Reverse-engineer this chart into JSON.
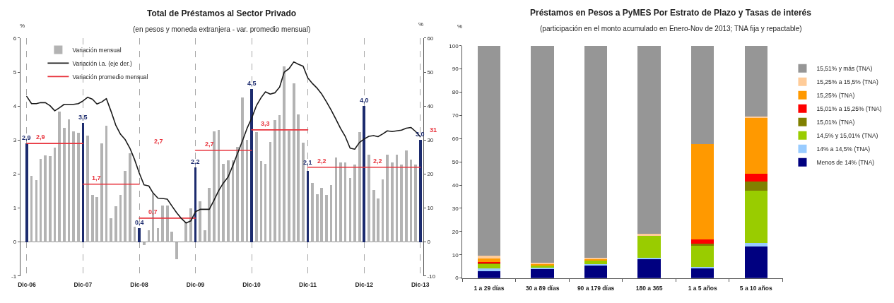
{
  "chart_data": [
    {
      "type": "bar",
      "title": "Total de Préstamos al Sector Privado",
      "subtitle": "(en pesos y moneda extranjera - var. promedio mensual)",
      "ylabel": "%",
      "y2label": "%",
      "x": [
        "2006-12",
        "2007-01",
        "2007-02",
        "2007-03",
        "2007-04",
        "2007-05",
        "2007-06",
        "2007-07",
        "2007-08",
        "2007-09",
        "2007-10",
        "2007-11",
        "2007-12",
        "2008-01",
        "2008-02",
        "2008-03",
        "2008-04",
        "2008-05",
        "2008-06",
        "2008-07",
        "2008-08",
        "2008-09",
        "2008-10",
        "2008-11",
        "2008-12",
        "2009-01",
        "2009-02",
        "2009-03",
        "2009-04",
        "2009-05",
        "2009-06",
        "2009-07",
        "2009-08",
        "2009-09",
        "2009-10",
        "2009-11",
        "2009-12",
        "2010-01",
        "2010-02",
        "2010-03",
        "2010-04",
        "2010-05",
        "2010-06",
        "2010-07",
        "2010-08",
        "2010-09",
        "2010-10",
        "2010-11",
        "2010-12",
        "2011-01",
        "2011-02",
        "2011-03",
        "2011-04",
        "2011-05",
        "2011-06",
        "2011-07",
        "2011-08",
        "2011-09",
        "2011-10",
        "2011-11",
        "2011-12",
        "2012-01",
        "2012-02",
        "2012-03",
        "2012-04",
        "2012-05",
        "2012-06",
        "2012-07",
        "2012-08",
        "2012-09",
        "2012-10",
        "2012-11",
        "2012-12",
        "2013-01",
        "2013-02",
        "2013-03",
        "2013-04",
        "2013-05",
        "2013-06",
        "2013-07",
        "2013-08",
        "2013-09",
        "2013-10",
        "2013-11",
        "2013-12"
      ],
      "xlim": [
        "2006-10-20",
        "2013-12-20"
      ],
      "xticks": [
        {
          "value": "2006-12",
          "label": "Dic-06"
        },
        {
          "value": "2007-12",
          "label": "Dic-07"
        },
        {
          "value": "2008-12",
          "label": "Dic-08"
        },
        {
          "value": "2009-12",
          "label": "Dic-09"
        },
        {
          "value": "2010-12",
          "label": "Dic-10"
        },
        {
          "value": "2011-12",
          "label": "Dic-11"
        },
        {
          "value": "2012-12",
          "label": "Dic-12"
        },
        {
          "value": "2013-12",
          "label": "Dic-13"
        }
      ],
      "ylim": [
        -1,
        6
      ],
      "yticks": [
        -1,
        0,
        1,
        2,
        3,
        4,
        5,
        6
      ],
      "y2lim": [
        -10,
        60
      ],
      "y2ticks": [
        -10,
        0,
        10,
        20,
        30,
        40,
        50,
        60
      ],
      "grid": "x",
      "legend": "top left",
      "series": [
        {
          "name": "Variación mensual",
          "type": "bar",
          "color": "#b3b3b3",
          "colors": [
            "#1c2b6e",
            "#b3b3b3",
            "#b3b3b3",
            "#b3b3b3",
            "#b3b3b3",
            "#b3b3b3",
            "#b3b3b3",
            "#b3b3b3",
            "#b3b3b3",
            "#b3b3b3",
            "#b3b3b3",
            "#b3b3b3",
            "#1c2b6e",
            "#b3b3b3",
            "#b3b3b3",
            "#b3b3b3",
            "#b3b3b3",
            "#b3b3b3",
            "#b3b3b3",
            "#b3b3b3",
            "#b3b3b3",
            "#b3b3b3",
            "#b3b3b3",
            "#b3b3b3",
            "#1c2b6e",
            "#b3b3b3",
            "#b3b3b3",
            "#b3b3b3",
            "#b3b3b3",
            "#b3b3b3",
            "#b3b3b3",
            "#b3b3b3",
            "#b3b3b3",
            "#b3b3b3",
            "#b3b3b3",
            "#b3b3b3",
            "#1c2b6e",
            "#b3b3b3",
            "#b3b3b3",
            "#b3b3b3",
            "#b3b3b3",
            "#b3b3b3",
            "#b3b3b3",
            "#b3b3b3",
            "#b3b3b3",
            "#b3b3b3",
            "#b3b3b3",
            "#b3b3b3",
            "#1c2b6e",
            "#b3b3b3",
            "#b3b3b3",
            "#b3b3b3",
            "#b3b3b3",
            "#b3b3b3",
            "#b3b3b3",
            "#b3b3b3",
            "#b3b3b3",
            "#b3b3b3",
            "#b3b3b3",
            "#b3b3b3",
            "#1c2b6e",
            "#b3b3b3",
            "#b3b3b3",
            "#b3b3b3",
            "#b3b3b3",
            "#b3b3b3",
            "#b3b3b3",
            "#b3b3b3",
            "#b3b3b3",
            "#b3b3b3",
            "#b3b3b3",
            "#b3b3b3",
            "#1c2b6e",
            "#b3b3b3",
            "#b3b3b3",
            "#b3b3b3",
            "#b3b3b3",
            "#b3b3b3",
            "#b3b3b3",
            "#b3b3b3",
            "#b3b3b3",
            "#b3b3b3",
            "#b3b3b3",
            "#b3b3b3",
            "#1c2b6e"
          ],
          "values": [
            2.9,
            1.95,
            1.83,
            2.45,
            2.55,
            2.52,
            2.78,
            3.83,
            3.35,
            3.6,
            3.25,
            3.22,
            3.5,
            3.12,
            1.38,
            1.33,
            2.9,
            3.42,
            0.7,
            1.05,
            1.38,
            2.1,
            2.62,
            0.45,
            0.4,
            -0.1,
            0.35,
            1.42,
            0.4,
            1.07,
            1.07,
            0.3,
            -0.5,
            0,
            0.6,
            0.98,
            2.2,
            1.2,
            0.35,
            1.6,
            3.25,
            3.3,
            2.3,
            2.4,
            2.4,
            2.8,
            4.26,
            3.0,
            4.5,
            3.23,
            2.39,
            2.3,
            2.94,
            3.59,
            3.74,
            5.17,
            3.27,
            4.66,
            3.76,
            2.93,
            2.1,
            1.74,
            1.4,
            1.6,
            1.38,
            1.67,
            2.49,
            2.35,
            2.35,
            1.88,
            2.28,
            3.23,
            4.0,
            2.56,
            1.54,
            1.28,
            1.84,
            2.56,
            2.35,
            2.56,
            2.28,
            2.69,
            2.42,
            2.28,
            3.0
          ],
          "value_labels": [
            "2,9",
            null,
            null,
            null,
            null,
            null,
            null,
            null,
            null,
            null,
            null,
            null,
            "3,5",
            null,
            null,
            null,
            null,
            null,
            null,
            null,
            null,
            null,
            null,
            null,
            "0,4",
            null,
            null,
            null,
            null,
            null,
            null,
            null,
            null,
            null,
            null,
            null,
            "2,2",
            null,
            null,
            null,
            null,
            null,
            null,
            null,
            null,
            null,
            null,
            null,
            "4,5",
            null,
            null,
            null,
            null,
            null,
            null,
            null,
            null,
            null,
            null,
            null,
            "2,1",
            null,
            null,
            null,
            null,
            null,
            null,
            null,
            null,
            null,
            null,
            null,
            "4,0",
            null,
            null,
            null,
            null,
            null,
            null,
            null,
            null,
            null,
            null,
            null,
            "3,0"
          ]
        },
        {
          "name": "Variación i.a. (eje der.)",
          "type": "line",
          "axis": "y2",
          "color": "#1a1a1a",
          "values": [
            42.8,
            40.7,
            40.7,
            41.0,
            41.0,
            40.1,
            38.6,
            39.5,
            40.5,
            40.5,
            40.5,
            40.7,
            41.5,
            42.6,
            42.0,
            40.6,
            41.2,
            42.2,
            38.4,
            34.4,
            31.7,
            30.1,
            27.6,
            24.2,
            20.3,
            16.8,
            16.5,
            14.4,
            12.9,
            12.8,
            12.6,
            10.6,
            8.6,
            6.9,
            5.6,
            6.2,
            8.9,
            9.6,
            9.6,
            9.6,
            12.3,
            15.1,
            17.4,
            19.1,
            22.5,
            26.1,
            29.6,
            33.4,
            36.4,
            40.1,
            42.5,
            44.2,
            43.5,
            43.9,
            45.6,
            50.0,
            51.0,
            53.0,
            52.3,
            51.7,
            48.3,
            46.6,
            45.2,
            43.5,
            41.2,
            38.8,
            36.1,
            33.4,
            31.0,
            27.6,
            27.3,
            29.3,
            30.3,
            31.1,
            31.3,
            31.0,
            31.8,
            32.7,
            32.5,
            32.7,
            32.9,
            33.5,
            33.7,
            32.5,
            31
          ],
          "value_labels": [
            null,
            null,
            null,
            null,
            null,
            null,
            null,
            null,
            null,
            null,
            null,
            null,
            null,
            null,
            null,
            null,
            null,
            null,
            null,
            null,
            null,
            null,
            null,
            null,
            null,
            null,
            null,
            null,
            null,
            null,
            null,
            null,
            null,
            null,
            null,
            null,
            null,
            null,
            null,
            null,
            null,
            null,
            null,
            null,
            null,
            null,
            null,
            null,
            null,
            null,
            null,
            null,
            null,
            null,
            null,
            null,
            null,
            null,
            null,
            null,
            null,
            null,
            null,
            null,
            null,
            null,
            null,
            null,
            null,
            null,
            null,
            null,
            null,
            null,
            null,
            null,
            null,
            null,
            null,
            null,
            null,
            null,
            null,
            null,
            "31"
          ]
        },
        {
          "name": "Variación promedio mensual",
          "type": "line",
          "color": "#e8333c",
          "x": [
            "2006-12",
            "2007-12",
            null,
            "2007-12",
            "2008-12",
            null,
            "2008-12",
            "2009-12",
            null,
            "2009-12",
            "2010-12",
            null,
            "2010-12",
            "2011-12",
            null,
            "2011-12",
            "2012-12",
            null,
            "2012-12",
            "2013-12"
          ],
          "values": [
            2.9,
            2.9,
            null,
            1.7,
            1.7,
            null,
            0.7,
            0.7,
            null,
            2.7,
            2.7,
            null,
            3.3,
            3.3,
            null,
            2.2,
            2.2,
            null,
            2.2,
            2.2
          ],
          "value_labels": [
            "2,9",
            null,
            null,
            "1,7",
            null,
            null,
            "0,7",
            null,
            null,
            "2,7",
            null,
            null,
            "3,3",
            null,
            null,
            "2,2",
            null,
            null,
            "2,2",
            null
          ]
        }
      ],
      "annotations": [
        "2,7"
      ]
    },
    {
      "type": "bar",
      "stacked": true,
      "title": "Préstamos en Pesos a PyMES Por Estrato de Plazo y Tasas de interés",
      "subtitle": "(participación en el monto acumulado en Enero-Nov de 2013; TNA fija y repactable)",
      "ylabel": "%",
      "categories": [
        "1 a 29 días",
        "30 a 89 días",
        "90 a 179 días",
        "180 a 365",
        "1 a 5 años",
        "5 a 10 años"
      ],
      "ylim": [
        0,
        100
      ],
      "yticks": [
        0,
        10,
        20,
        30,
        40,
        50,
        60,
        70,
        80,
        90,
        100
      ],
      "legend": "top right",
      "series": [
        {
          "name": "Menos de 14% (TNA)",
          "color": "#000080",
          "values": [
            3.0,
            4.2,
            5.7,
            8.4,
            4.5,
            13.6
          ]
        },
        {
          "name": "14% a 14,5% (TNA)",
          "color": "#99ccff",
          "values": [
            1.2,
            0.4,
            0.3,
            0.2,
            0.3,
            1.4
          ]
        },
        {
          "name": "14,5% y 15,01% (TNA)",
          "color": "#99cc00",
          "values": [
            2.0,
            0.8,
            1.8,
            9.9,
            9.1,
            22.6
          ]
        },
        {
          "name": "15,01% (TNA)",
          "color": "#808000",
          "values": [
            0.3,
            0,
            0,
            0,
            1.0,
            4.0
          ]
        },
        {
          "name": "15,01% a 15,25% (TNA)",
          "color": "#ff0000",
          "values": [
            0.3,
            0,
            0,
            0,
            1.7,
            3.3
          ]
        },
        {
          "name": "15,25% (TNA)",
          "color": "#ff9900",
          "values": [
            1.5,
            0.8,
            0.6,
            0,
            41.1,
            23.9
          ]
        },
        {
          "name": "15,25% a 15,5% (TNA)",
          "color": "#ffcc99",
          "values": [
            1.2,
            0.3,
            0.4,
            0.5,
            0,
            0.8
          ]
        },
        {
          "name": "15,51% y más (TNA)",
          "color": "#969696",
          "values": [
            90.5,
            93.5,
            91.2,
            81.0,
            42.3,
            30.4
          ]
        }
      ]
    }
  ]
}
